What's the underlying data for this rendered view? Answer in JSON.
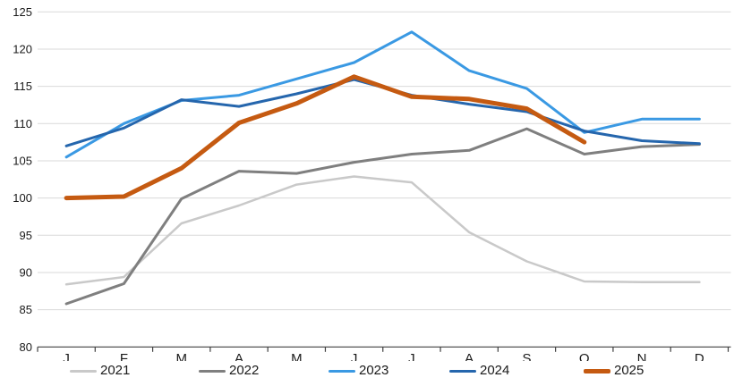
{
  "chart_data": {
    "type": "line",
    "categories": [
      "J",
      "F",
      "M",
      "A",
      "M",
      "J",
      "J",
      "A",
      "S",
      "O",
      "N",
      "D"
    ],
    "y_ticks": [
      80,
      85,
      90,
      95,
      100,
      105,
      110,
      115,
      120,
      125
    ],
    "ylim": [
      80,
      125
    ],
    "grid": "horizontal",
    "legend_position": "bottom",
    "title": "",
    "xlabel": "",
    "ylabel": "",
    "series": [
      {
        "name": "2021",
        "color": "#C9C9C9",
        "stroke_width": 2.5,
        "values": [
          88.4,
          89.4,
          96.6,
          99.0,
          101.8,
          102.9,
          102.1,
          95.4,
          91.5,
          88.8,
          88.7,
          88.7
        ]
      },
      {
        "name": "2022",
        "color": "#7F7F7F",
        "stroke_width": 3,
        "values": [
          85.8,
          88.5,
          99.9,
          103.6,
          103.3,
          104.8,
          105.9,
          106.4,
          109.3,
          105.9,
          106.9,
          107.2
        ]
      },
      {
        "name": "2023",
        "color": "#3A99E3",
        "stroke_width": 3,
        "values": [
          105.5,
          110.0,
          113.1,
          113.8,
          116.0,
          118.2,
          122.3,
          117.1,
          114.7,
          108.8,
          110.6,
          110.6
        ]
      },
      {
        "name": "2024",
        "color": "#2566AD",
        "stroke_width": 3,
        "values": [
          107.0,
          109.4,
          113.2,
          112.3,
          114.0,
          115.9,
          113.8,
          112.6,
          111.6,
          109.0,
          107.7,
          107.3
        ]
      },
      {
        "name": "2025",
        "color": "#C55A11",
        "stroke_width": 5,
        "values": [
          100.0,
          100.2,
          104.0,
          110.1,
          112.7,
          116.3,
          113.6,
          113.3,
          112.0,
          107.5
        ]
      }
    ]
  },
  "layout_colors": {
    "gridline": "#D9D9D9",
    "axis": "#404040",
    "text": "#1a1a1a",
    "background": "#FFFFFF"
  },
  "legend": {
    "items": [
      {
        "label": "2021"
      },
      {
        "label": "2022"
      },
      {
        "label": "2023"
      },
      {
        "label": "2024"
      },
      {
        "label": "2025"
      }
    ]
  }
}
